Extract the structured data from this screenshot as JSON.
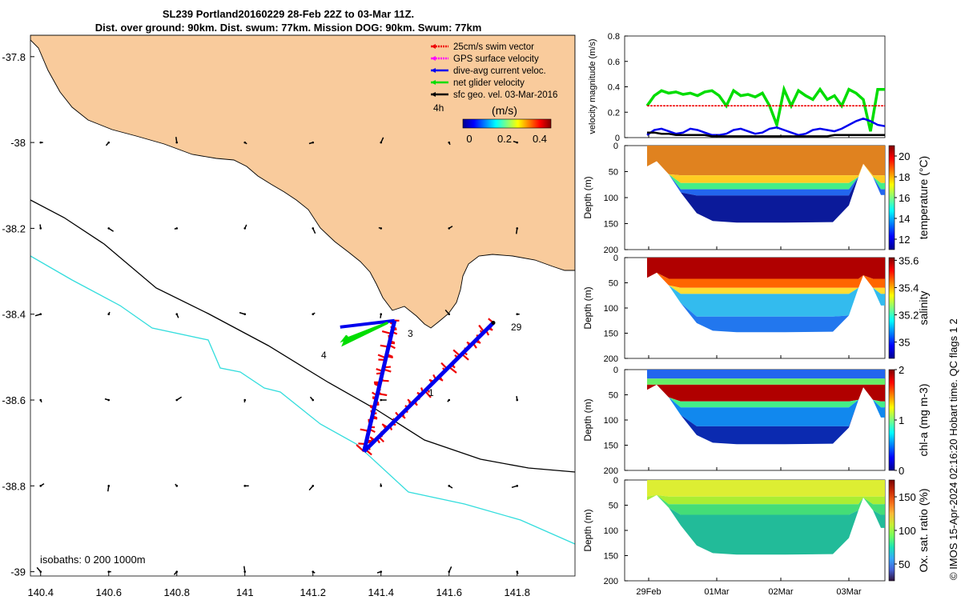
{
  "title_line1": "SL239 Portland20160229 28-Feb 22Z to 03-Mar 11Z.",
  "title_line2": "Dist. over ground: 90km. Dist. swum: 77km. Mission DOG: 90km. Swum: 77km",
  "credit": "© IMOS 15-Apr-2024 02:16:20 Hobart time. QC flags 1  2",
  "colors": {
    "land": "#f9cb9c",
    "isobath200": "#000000",
    "isobath1000": "#33dddd",
    "swim": "#ee0000",
    "gps": "#ff00ff",
    "dive": "#0000ee",
    "net": "#00dd00",
    "sfc": "#000000"
  },
  "chart_data": [
    {
      "type": "map",
      "name": "glider-track-map",
      "x_ticks": [
        "140.4",
        "140.6",
        "140.8",
        "141",
        "141.2",
        "141.4",
        "141.6",
        "141.8"
      ],
      "y_ticks": [
        "-37.8",
        "-38",
        "-38.2",
        "-38.4",
        "-38.6",
        "-38.8",
        "-39"
      ],
      "xlim": [
        140.37,
        141.97
      ],
      "ylim": [
        -39.01,
        -37.75
      ],
      "legend": [
        {
          "label": "25cm/s swim vector",
          "color": "#ee0000"
        },
        {
          "label": "GPS surface velocity",
          "color": "#ff00ff"
        },
        {
          "label": "dive-avg current veloc.",
          "color": "#0000ee"
        },
        {
          "label": "net glider velocity",
          "color": "#00dd00"
        },
        {
          "label": "sfc geo. vel. 03-Mar-2016",
          "color": "#000000"
        }
      ],
      "legend_extra": "4h",
      "colorbar": {
        "label": "(m/s)",
        "ticks": [
          "0",
          "0.2",
          "0.4"
        ],
        "range": [
          0,
          0.5
        ]
      },
      "isobaths_label": "isobaths: 0   200  1000m",
      "track_labels": [
        "3",
        "4",
        "1",
        "29"
      ],
      "track_1_lonlat": [
        [
          141.44,
          -38.415
        ],
        [
          141.35,
          -38.72
        ]
      ],
      "track_2_lonlat": [
        [
          141.35,
          -38.72
        ],
        [
          141.73,
          -38.42
        ]
      ]
    },
    {
      "type": "line",
      "name": "velocity-timeseries",
      "ylabel": "velocity magnitude (m/s)",
      "ylim": [
        0,
        0.8
      ],
      "y_ticks": [
        "0",
        "0.2",
        "0.4",
        "0.6",
        "0.8"
      ],
      "series": [
        {
          "color": "#00dd00",
          "values": [
            0.25,
            0.33,
            0.37,
            0.35,
            0.36,
            0.34,
            0.35,
            0.33,
            0.36,
            0.37,
            0.33,
            0.25,
            0.37,
            0.33,
            0.34,
            0.32,
            0.35,
            0.25,
            0.1,
            0.38,
            0.25,
            0.37,
            0.33,
            0.3,
            0.38,
            0.3,
            0.33,
            0.25,
            0.38,
            0.35,
            0.3,
            0.05,
            0.38,
            0.38
          ]
        },
        {
          "color": "#ee0000",
          "values": [
            0.25,
            0.25,
            0.25,
            0.25,
            0.25,
            0.25,
            0.25,
            0.25,
            0.25,
            0.25,
            0.25,
            0.25,
            0.25,
            0.25,
            0.25,
            0.25,
            0.25,
            0.25,
            0.25,
            0.25,
            0.25,
            0.25,
            0.25,
            0.25,
            0.25,
            0.25,
            0.25,
            0.25,
            0.25,
            0.25,
            0.25,
            0.25,
            0.25,
            0.25
          ]
        },
        {
          "color": "#0000ee",
          "values": [
            0.02,
            0.06,
            0.07,
            0.05,
            0.03,
            0.04,
            0.07,
            0.06,
            0.04,
            0.02,
            0.02,
            0.03,
            0.06,
            0.07,
            0.05,
            0.03,
            0.04,
            0.07,
            0.08,
            0.06,
            0.04,
            0.02,
            0.03,
            0.06,
            0.07,
            0.06,
            0.05,
            0.07,
            0.1,
            0.13,
            0.15,
            0.13,
            0.1,
            0.09
          ]
        },
        {
          "color": "#000000",
          "values": [
            0.04,
            0.04,
            0.03,
            0.03,
            0.02,
            0.02,
            0.02,
            0.02,
            0.02,
            0.01,
            0.01,
            0.01,
            0.01,
            0.01,
            0.01,
            0.01,
            0.01,
            0.01,
            0.01,
            0.01,
            0.01,
            0.01,
            0.01,
            0.01,
            0.01,
            0.01,
            0.02,
            0.02,
            0.02,
            0.02,
            0.02,
            0.02,
            0.02,
            0.02
          ]
        }
      ]
    },
    {
      "type": "heatmap",
      "name": "temperature-section",
      "ylabel": "Depth (m)",
      "cbar_label": "temperature (°C)",
      "cbar_ticks": [
        "20",
        "18",
        "16",
        "14",
        "12"
      ],
      "y_ticks": [
        "0",
        "50",
        "100",
        "150",
        "200"
      ],
      "ylim": [
        0,
        200
      ]
    },
    {
      "type": "heatmap",
      "name": "salinity-section",
      "ylabel": "Depth (m)",
      "cbar_label": "salinity",
      "cbar_ticks": [
        "35.6",
        "35.4",
        "35.2",
        "35"
      ],
      "y_ticks": [
        "0",
        "50",
        "100",
        "150",
        "200"
      ],
      "ylim": [
        0,
        200
      ]
    },
    {
      "type": "heatmap",
      "name": "chla-section",
      "ylabel": "Depth (m)",
      "cbar_label": "chl-a (mg m-3)",
      "cbar_ticks": [
        "2",
        "1",
        "0"
      ],
      "y_ticks": [
        "0",
        "50",
        "100",
        "150",
        "200"
      ],
      "ylim": [
        0,
        200
      ]
    },
    {
      "type": "heatmap",
      "name": "oxygen-section",
      "ylabel": "Depth (m)",
      "cbar_label": "Ox. sat. ratio (%)",
      "cbar_ticks": [
        "150",
        "100",
        "50"
      ],
      "y_ticks": [
        "0",
        "50",
        "100",
        "150",
        "200"
      ],
      "ylim": [
        0,
        200
      ],
      "x_ticks": [
        "29Feb",
        "01Mar",
        "02Mar",
        "03Mar"
      ]
    }
  ]
}
